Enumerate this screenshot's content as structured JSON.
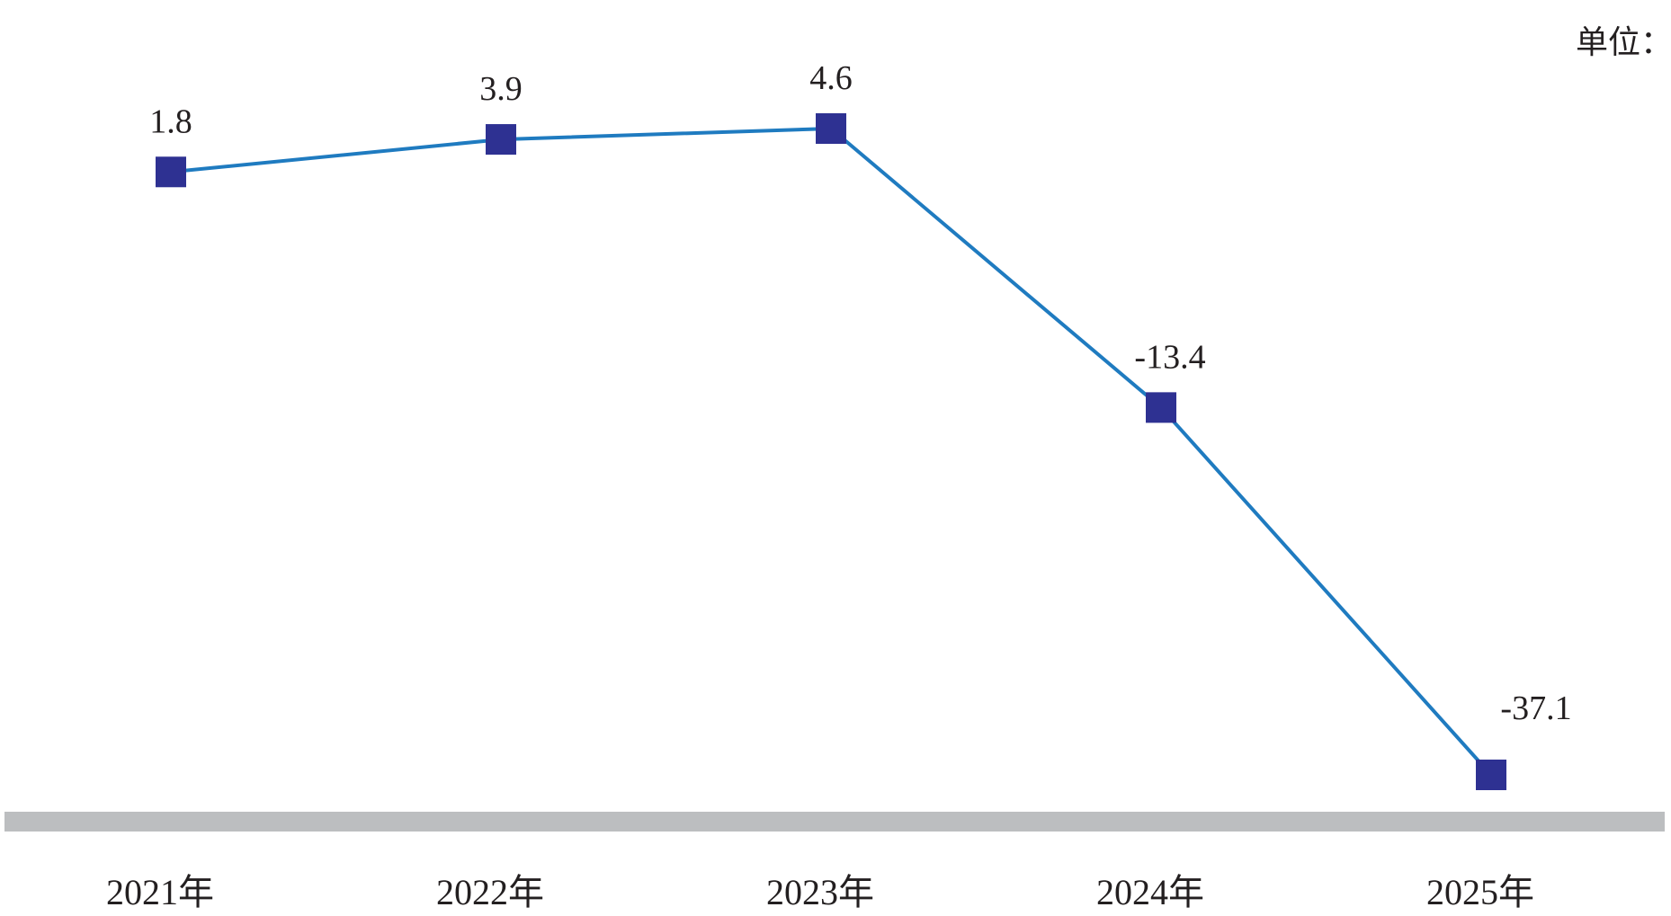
{
  "chart_data": {
    "type": "line",
    "unit_text": "单位：",
    "categories": [
      "2021年",
      "2022年",
      "2023年",
      "2024年",
      "2025年"
    ],
    "series": [
      {
        "values": [
          1.8,
          3.9,
          4.6,
          -13.4,
          -37.1
        ],
        "data_labels": [
          "1.8",
          "3.9",
          "4.6",
          "-13.4",
          "-37.1"
        ]
      }
    ],
    "title": "",
    "xlabel": "",
    "ylabel": "",
    "ylim": [
      -37.1,
      4.6
    ],
    "grid": false,
    "legend": "none",
    "colors": {
      "line": "#1f7bc0",
      "marker": "#2e3192",
      "baseline": "#bcbec0",
      "text": "#231f20"
    }
  }
}
